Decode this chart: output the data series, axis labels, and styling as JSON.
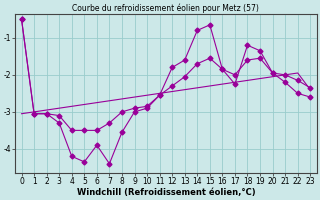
{
  "title": "Courbe du refroidissement éolien pour Metz (57)",
  "xlabel": "Windchill (Refroidissement éolien,°C)",
  "background_color": "#cce8e8",
  "grid_color": "#99cccc",
  "line_color": "#990099",
  "x": [
    0,
    1,
    2,
    3,
    4,
    5,
    6,
    7,
    8,
    9,
    10,
    11,
    12,
    13,
    14,
    15,
    16,
    17,
    18,
    19,
    20,
    21,
    22,
    23
  ],
  "y_main": [
    -0.5,
    -3.05,
    -3.05,
    -3.3,
    -4.2,
    -4.35,
    -3.9,
    -4.4,
    -3.55,
    -3.0,
    -2.9,
    -2.55,
    -1.8,
    -1.6,
    -0.8,
    -0.65,
    -1.85,
    -2.25,
    -1.2,
    -1.35,
    -1.95,
    -2.2,
    -2.5,
    -2.6
  ],
  "y_smooth": [
    -0.5,
    -3.05,
    -3.05,
    -3.1,
    -3.5,
    -3.5,
    -3.5,
    -3.3,
    -3.0,
    -2.9,
    -2.85,
    -2.55,
    -2.3,
    -2.05,
    -1.7,
    -1.55,
    -1.85,
    -2.0,
    -1.6,
    -1.55,
    -1.95,
    -2.0,
    -2.15,
    -2.35
  ],
  "y_linear": [
    -3.05,
    -3.0,
    -2.95,
    -2.9,
    -2.85,
    -2.8,
    -2.75,
    -2.7,
    -2.65,
    -2.6,
    -2.55,
    -2.5,
    -2.45,
    -2.4,
    -2.35,
    -2.3,
    -2.25,
    -2.2,
    -2.15,
    -2.1,
    -2.05,
    -2.0,
    -1.95,
    -2.4
  ],
  "ylim": [
    -4.65,
    -0.35
  ],
  "yticks": [
    -4,
    -3,
    -2,
    -1
  ],
  "xlim": [
    -0.5,
    23.5
  ],
  "markersize": 2.5,
  "linewidth": 0.8,
  "tick_fontsize": 5.5,
  "xlabel_fontsize": 6,
  "title_fontsize": 5.5
}
